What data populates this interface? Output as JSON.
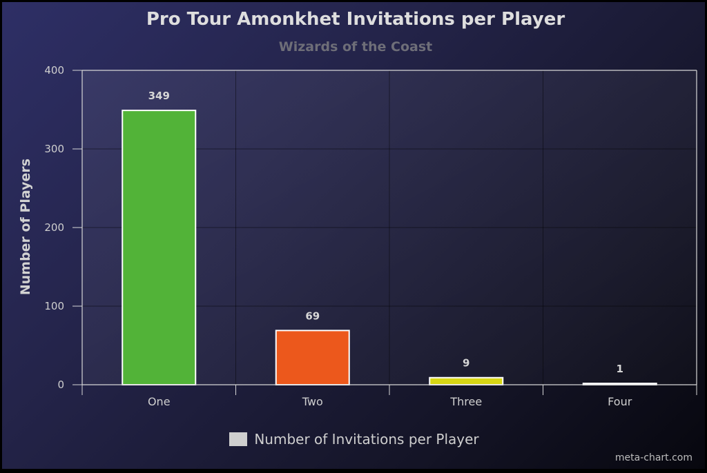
{
  "chart_data": {
    "type": "bar",
    "title": "Pro Tour Amonkhet Invitations per Player",
    "subtitle": "Wizards of the Coast",
    "xlabel": "",
    "ylabel": "Number of Players",
    "categories": [
      "One",
      "Two",
      "Three",
      "Four"
    ],
    "values": [
      349,
      69,
      9,
      1
    ],
    "bar_colors": [
      "#52b338",
      "#ec581c",
      "#d7d614",
      "#d6d6d6"
    ],
    "ylim": [
      0,
      400
    ],
    "yticks": [
      0,
      100,
      200,
      300,
      400
    ],
    "grid": true,
    "legend": {
      "label": "Number of Invitations per Player",
      "color": "#cfcfcf",
      "position": "bottom-center"
    },
    "data_labels": true
  },
  "credit": "meta-chart.com"
}
